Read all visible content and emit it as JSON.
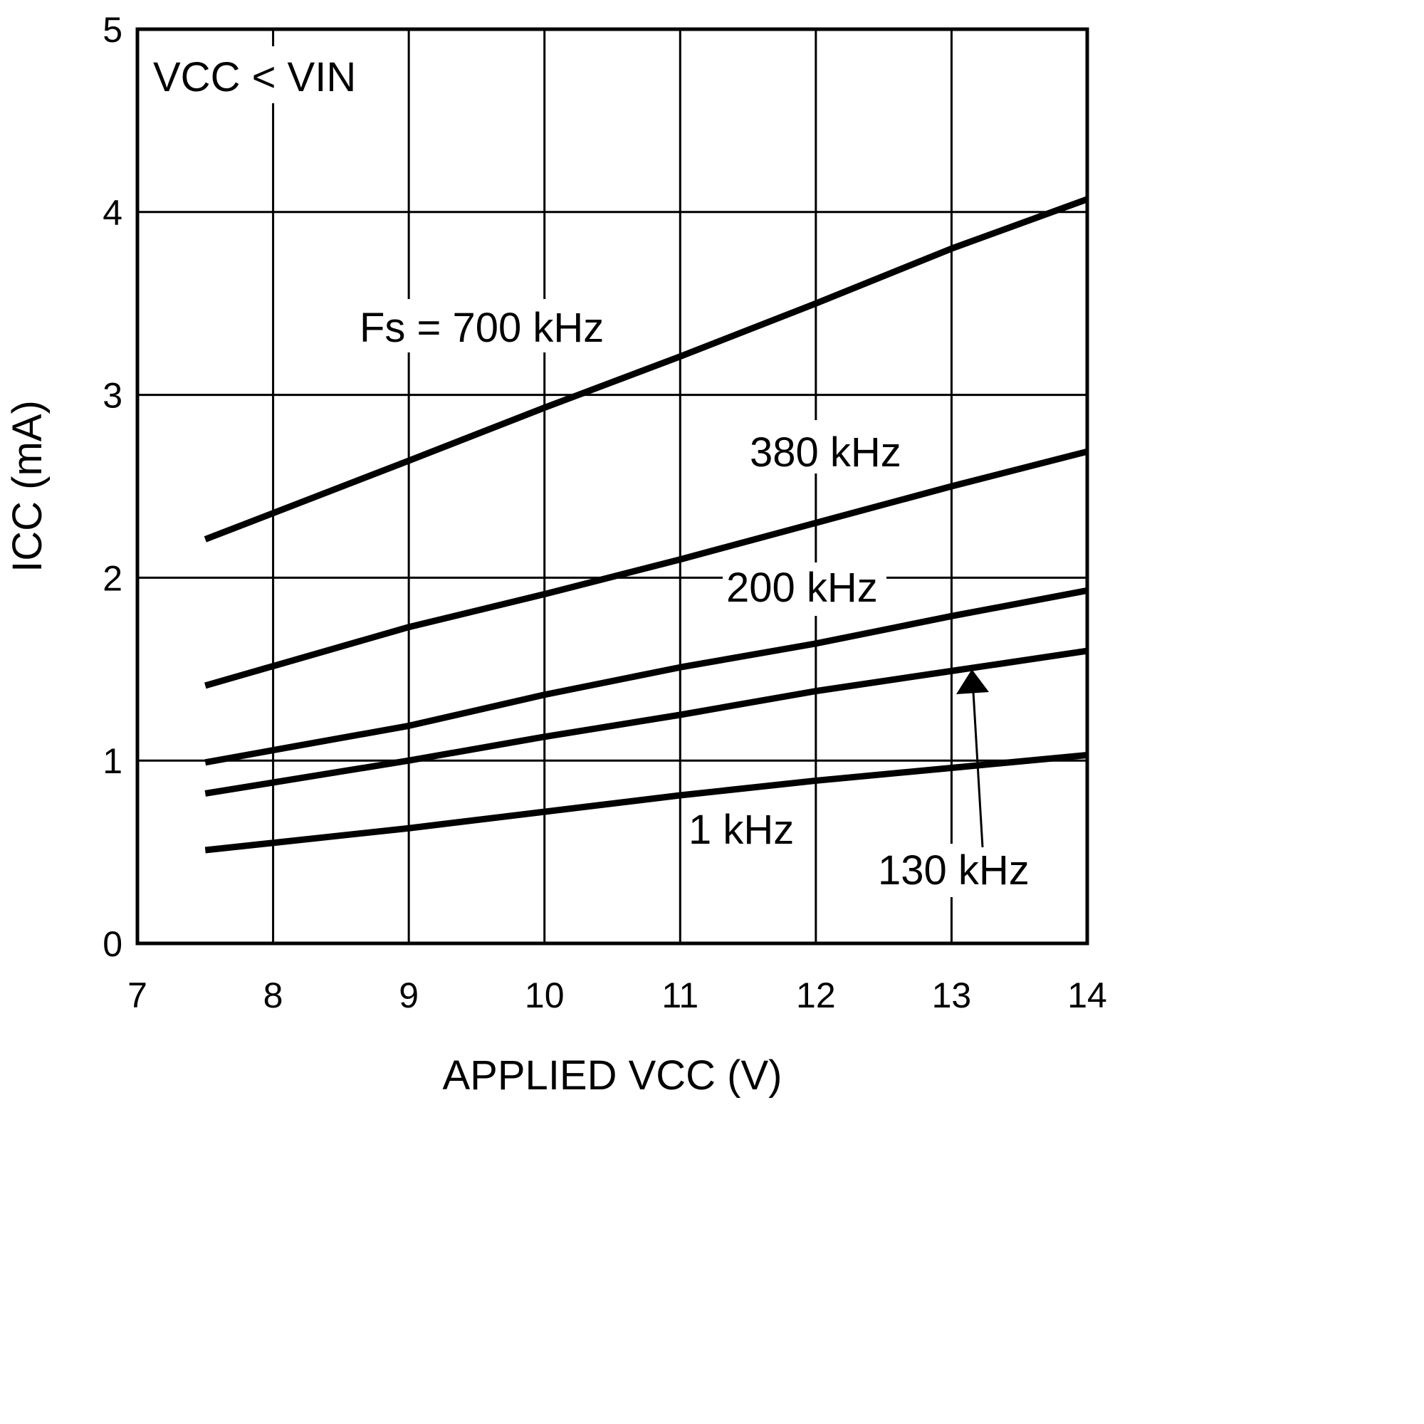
{
  "chart_data": {
    "type": "line",
    "title": "",
    "xlabel": "APPLIED VCC (V)",
    "ylabel": "ICC (mA)",
    "xlim": [
      7,
      14
    ],
    "ylim": [
      0,
      5
    ],
    "xticks": [
      "7",
      "8",
      "9",
      "10",
      "11",
      "12",
      "13",
      "14"
    ],
    "yticks": [
      "0",
      "1",
      "2",
      "3",
      "4",
      "5"
    ],
    "grid": true,
    "annotation": "VCC < VIN",
    "x": [
      7.5,
      9,
      10,
      11,
      12,
      13,
      14
    ],
    "series": [
      {
        "name": "Fs = 700 kHz",
        "values": [
          2.21,
          2.64,
          2.93,
          3.21,
          3.5,
          3.8,
          4.07
        ]
      },
      {
        "name": "380 kHz",
        "values": [
          1.41,
          1.73,
          1.91,
          2.1,
          2.3,
          2.5,
          2.69
        ]
      },
      {
        "name": "200 kHz",
        "values": [
          0.99,
          1.19,
          1.36,
          1.51,
          1.64,
          1.79,
          1.93
        ]
      },
      {
        "name": "130 kHz",
        "values": [
          0.82,
          1.0,
          1.13,
          1.25,
          1.38,
          1.49,
          1.6
        ]
      },
      {
        "name": "1 kHz",
        "values": [
          0.51,
          0.63,
          0.72,
          0.81,
          0.89,
          0.96,
          1.03
        ]
      }
    ],
    "line_color": "#000000"
  }
}
